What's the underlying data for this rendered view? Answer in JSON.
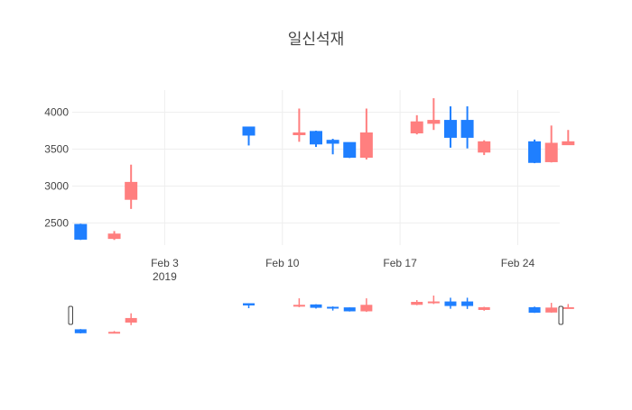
{
  "chart_data": {
    "type": "candlestick",
    "title": "일신석재",
    "xlabel": "",
    "ylabel": "",
    "x_ticks": [
      {
        "date": "2019-02-03",
        "label": "Feb 3",
        "sublabel": "2019"
      },
      {
        "date": "2019-02-10",
        "label": "Feb 10",
        "sublabel": ""
      },
      {
        "date": "2019-02-17",
        "label": "Feb 17",
        "sublabel": ""
      },
      {
        "date": "2019-02-24",
        "label": "Feb 24",
        "sublabel": ""
      }
    ],
    "y_ticks": [
      2500,
      3000,
      3500,
      4000
    ],
    "xlim": [
      "2019-01-28T12:00",
      "2019-02-26T12:00"
    ],
    "ylim": [
      2200,
      4300
    ],
    "grid": true,
    "range_slider": true,
    "colors": {
      "increasing": "#FF7F7F",
      "decreasing": "#1F7FFF",
      "grid": "#eeeeee",
      "text": "#444444"
    },
    "candles": [
      {
        "date": "2019-01-29",
        "open": 2480,
        "high": 2490,
        "low": 2270,
        "close": 2280
      },
      {
        "date": "2019-01-31",
        "open": 2290,
        "high": 2390,
        "low": 2270,
        "close": 2350
      },
      {
        "date": "2019-02-01",
        "open": 2820,
        "high": 3290,
        "low": 2690,
        "close": 3050
      },
      {
        "date": "2019-02-08",
        "open": 3800,
        "high": 3800,
        "low": 3550,
        "close": 3690
      },
      {
        "date": "2019-02-11",
        "open": 3700,
        "high": 4050,
        "low": 3600,
        "close": 3720
      },
      {
        "date": "2019-02-12",
        "open": 3740,
        "high": 3750,
        "low": 3530,
        "close": 3570
      },
      {
        "date": "2019-02-13",
        "open": 3620,
        "high": 3640,
        "low": 3430,
        "close": 3580
      },
      {
        "date": "2019-02-14",
        "open": 3590,
        "high": 3590,
        "low": 3380,
        "close": 3390
      },
      {
        "date": "2019-02-15",
        "open": 3390,
        "high": 4050,
        "low": 3360,
        "close": 3720
      },
      {
        "date": "2019-02-18",
        "open": 3720,
        "high": 3960,
        "low": 3700,
        "close": 3870
      },
      {
        "date": "2019-02-19",
        "open": 3850,
        "high": 4190,
        "low": 3760,
        "close": 3890
      },
      {
        "date": "2019-02-20",
        "open": 3890,
        "high": 4080,
        "low": 3520,
        "close": 3660
      },
      {
        "date": "2019-02-21",
        "open": 3890,
        "high": 4080,
        "low": 3510,
        "close": 3660
      },
      {
        "date": "2019-02-22",
        "open": 3460,
        "high": 3620,
        "low": 3420,
        "close": 3600
      },
      {
        "date": "2019-02-25",
        "open": 3600,
        "high": 3630,
        "low": 3310,
        "close": 3320
      },
      {
        "date": "2019-02-26",
        "open": 3330,
        "high": 3820,
        "low": 3320,
        "close": 3580
      },
      {
        "date": "2019-02-27",
        "open": 3560,
        "high": 3760,
        "low": 3560,
        "close": 3600
      }
    ]
  }
}
